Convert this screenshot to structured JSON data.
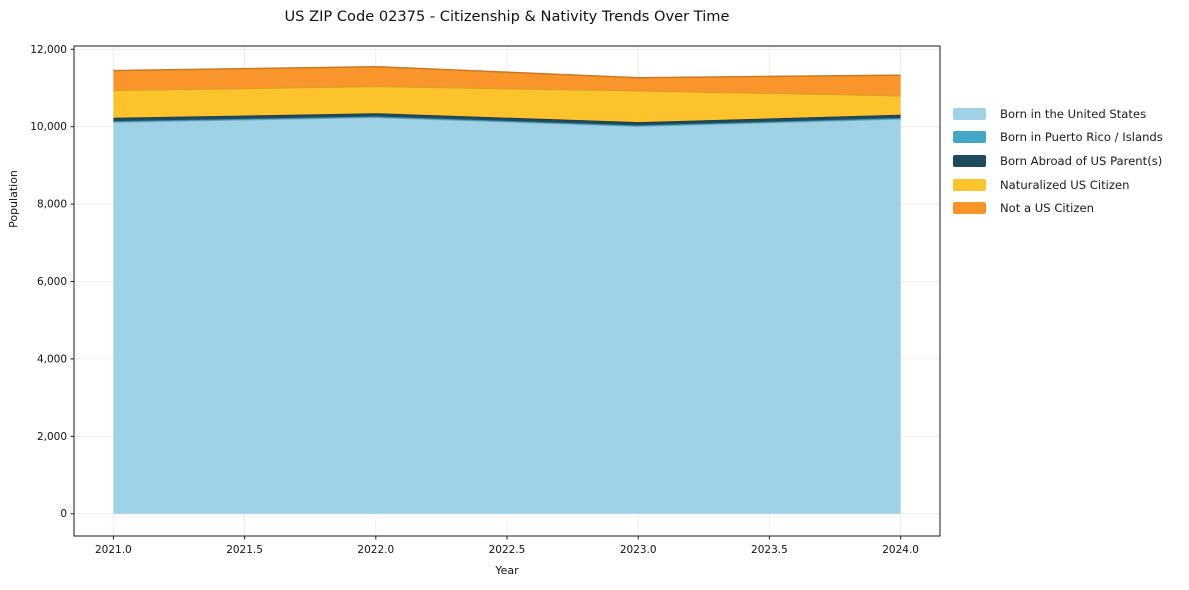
{
  "title": "US ZIP Code 02375 - Citizenship & Nativity Trends Over Time",
  "background_color": "#ffffff",
  "chart_data": {
    "type": "area",
    "stacked": true,
    "title": "US ZIP Code 02375 - Citizenship & Nativity Trends Over Time",
    "xlabel": "Year",
    "ylabel": "Population",
    "x": [
      2021,
      2022,
      2023,
      2024
    ],
    "series": [
      {
        "name": "Born in the United States",
        "color": "#9fd2e7",
        "values": [
          10120,
          10240,
          10010,
          10200
        ]
      },
      {
        "name": "Born in Puerto Rico / Islands",
        "color": "#45a6c6",
        "values": [
          25,
          25,
          25,
          25
        ]
      },
      {
        "name": "Born Abroad of US Parent(s)",
        "color": "#1f4a5e",
        "values": [
          85,
          85,
          85,
          85
        ]
      },
      {
        "name": "Naturalized US Citizen",
        "color": "#fcc32d",
        "values": [
          710,
          690,
          810,
          490
        ]
      },
      {
        "name": "Not a US Citizen",
        "color": "#f8952b",
        "values": [
          510,
          510,
          335,
          530
        ]
      }
    ],
    "totals": [
      11450,
      11550,
      11265,
      11330
    ],
    "xticks": {
      "values": [
        2021,
        2021.5,
        2022,
        2022.5,
        2023,
        2023.5,
        2024
      ],
      "labels": [
        "2021.0",
        "2021.5",
        "2022.0",
        "2022.5",
        "2023.0",
        "2023.5",
        "2024.0"
      ]
    },
    "yticks": {
      "values": [
        0,
        2000,
        4000,
        6000,
        8000,
        10000,
        12000
      ],
      "labels": [
        "0",
        "2,000",
        "4,000",
        "6,000",
        "8,000",
        "10,000",
        "12,000"
      ]
    },
    "xlim": [
      2020.85,
      2024.15
    ],
    "ylim": [
      -575,
      12085
    ],
    "grid": true,
    "grid_color": "#ececec",
    "spine_color": "#1a1a1a",
    "legend_position": "right-outside",
    "legend_frame": false
  }
}
